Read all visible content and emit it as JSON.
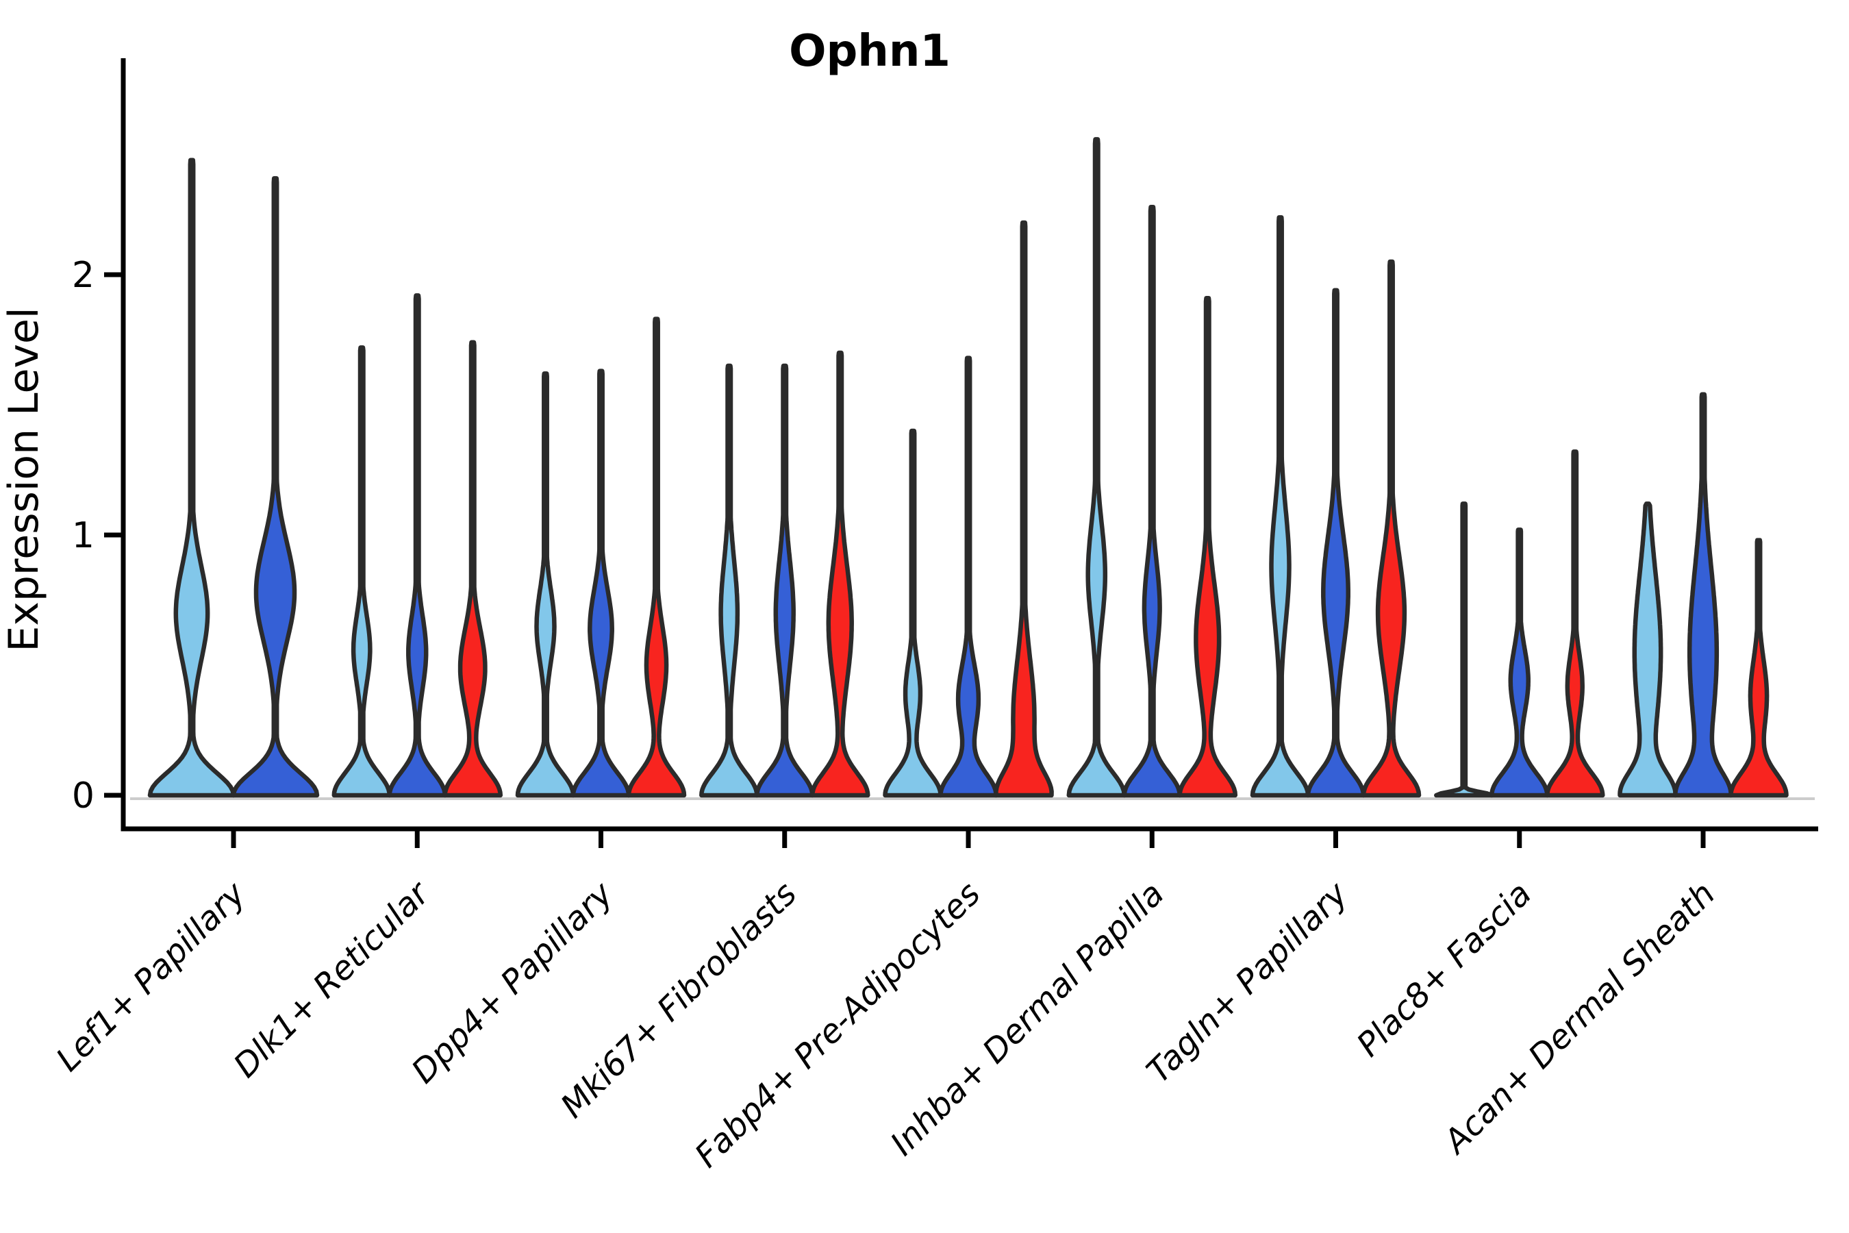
{
  "chart_data": {
    "type": "violin",
    "title": "Ophn1",
    "ylabel": "Expression Level",
    "xlabel": "",
    "ylim": [
      0,
      2.83
    ],
    "yticks": [
      0,
      1,
      2
    ],
    "grid": false,
    "legend": "none",
    "outline_color": "#2B2B2B",
    "axis_color": "#000000",
    "zero_line_color": "#cccccc",
    "splits": [
      {
        "name": "condition-lightblue",
        "color": "#82C7EA"
      },
      {
        "name": "condition-darkblue",
        "color": "#3560D6"
      },
      {
        "name": "condition-red",
        "color": "#F8241F"
      }
    ],
    "categories": [
      "Lef1+ Papillary",
      "Dlk1+ Reticular",
      "Dpp4+ Papillary",
      "Mki67+ Fibroblasts",
      "Fabp4+ Pre-Adipocytes",
      "Inhba+ Dermal Papilla",
      "Tagln+ Papillary",
      "Plac8+ Fascia",
      "Acan+ Dermal Sheath"
    ],
    "groups": [
      {
        "category": "Lef1+ Papillary",
        "violins": [
          {
            "split": 0,
            "max": 2.44,
            "bulge_center": 0.7,
            "bulge_amp": 0.38,
            "bulge_sigma": 0.18
          },
          {
            "split": 1,
            "max": 2.37,
            "bulge_center": 0.78,
            "bulge_amp": 0.46,
            "bulge_sigma": 0.19
          }
        ]
      },
      {
        "category": "Dlk1+ Reticular",
        "violins": [
          {
            "split": 0,
            "max": 1.72,
            "bulge_center": 0.56,
            "bulge_amp": 0.3,
            "bulge_sigma": 0.13
          },
          {
            "split": 1,
            "max": 1.92,
            "bulge_center": 0.55,
            "bulge_amp": 0.32,
            "bulge_sigma": 0.14
          },
          {
            "split": 2,
            "max": 1.74,
            "bulge_center": 0.49,
            "bulge_amp": 0.45,
            "bulge_sigma": 0.15
          }
        ]
      },
      {
        "category": "Dpp4+ Papillary",
        "violins": [
          {
            "split": 0,
            "max": 1.62,
            "bulge_center": 0.65,
            "bulge_amp": 0.32,
            "bulge_sigma": 0.14
          },
          {
            "split": 1,
            "max": 1.63,
            "bulge_center": 0.64,
            "bulge_amp": 0.4,
            "bulge_sigma": 0.15
          },
          {
            "split": 2,
            "max": 1.83,
            "bulge_center": 0.5,
            "bulge_amp": 0.36,
            "bulge_sigma": 0.15
          }
        ]
      },
      {
        "category": "Mki67+ Fibroblasts",
        "violins": [
          {
            "split": 0,
            "max": 1.65,
            "bulge_center": 0.7,
            "bulge_amp": 0.3,
            "bulge_sigma": 0.2
          },
          {
            "split": 1,
            "max": 1.65,
            "bulge_center": 0.7,
            "bulge_amp": 0.32,
            "bulge_sigma": 0.2
          },
          {
            "split": 2,
            "max": 1.7,
            "bulge_center": 0.66,
            "bulge_amp": 0.42,
            "bulge_sigma": 0.22
          }
        ]
      },
      {
        "category": "Fabp4+ Pre-Adipocytes",
        "violins": [
          {
            "split": 0,
            "max": 1.4,
            "bulge_center": 0.39,
            "bulge_amp": 0.27,
            "bulge_sigma": 0.12
          },
          {
            "split": 1,
            "max": 1.68,
            "bulge_center": 0.37,
            "bulge_amp": 0.37,
            "bulge_sigma": 0.13
          },
          {
            "split": 2,
            "max": 2.2,
            "bulge_center": 0.3,
            "bulge_amp": 0.45,
            "bulge_sigma": 0.22
          }
        ]
      },
      {
        "category": "Inhba+ Dermal Papilla",
        "violins": [
          {
            "split": 0,
            "max": 2.52,
            "bulge_center": 0.85,
            "bulge_amp": 0.31,
            "bulge_sigma": 0.19
          },
          {
            "split": 1,
            "max": 2.26,
            "bulge_center": 0.72,
            "bulge_amp": 0.28,
            "bulge_sigma": 0.17
          },
          {
            "split": 2,
            "max": 1.91,
            "bulge_center": 0.6,
            "bulge_amp": 0.42,
            "bulge_sigma": 0.21
          }
        ]
      },
      {
        "category": "Tagln+ Papillary",
        "violins": [
          {
            "split": 0,
            "max": 2.22,
            "bulge_center": 0.88,
            "bulge_amp": 0.32,
            "bulge_sigma": 0.22
          },
          {
            "split": 1,
            "max": 1.94,
            "bulge_center": 0.78,
            "bulge_amp": 0.45,
            "bulge_sigma": 0.22
          },
          {
            "split": 2,
            "max": 2.05,
            "bulge_center": 0.7,
            "bulge_amp": 0.48,
            "bulge_sigma": 0.22
          }
        ]
      },
      {
        "category": "Plac8+ Fascia",
        "violins": [
          {
            "split": 0,
            "max": 1.12,
            "flat": true,
            "bulge_center": 0,
            "bulge_amp": 0,
            "bulge_sigma": 1
          },
          {
            "split": 1,
            "max": 1.02,
            "bulge_center": 0.44,
            "bulge_amp": 0.32,
            "bulge_sigma": 0.12
          },
          {
            "split": 2,
            "max": 1.32,
            "bulge_center": 0.42,
            "bulge_amp": 0.27,
            "bulge_sigma": 0.12
          }
        ]
      },
      {
        "category": "Acan+ Dermal Sheath",
        "violins": [
          {
            "split": 0,
            "max": 1.12,
            "bulge_center": 0.55,
            "bulge_amp": 0.52,
            "bulge_sigma": 0.3
          },
          {
            "split": 1,
            "max": 1.54,
            "bulge_center": 0.55,
            "bulge_amp": 0.55,
            "bulge_sigma": 0.32
          },
          {
            "split": 2,
            "max": 0.98,
            "bulge_center": 0.38,
            "bulge_amp": 0.3,
            "bulge_sigma": 0.14
          }
        ]
      }
    ]
  }
}
